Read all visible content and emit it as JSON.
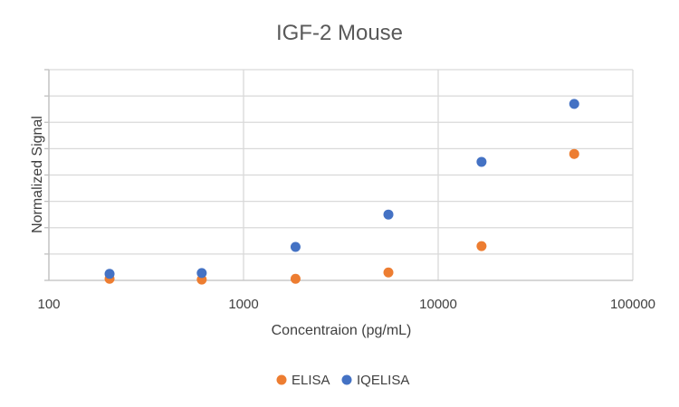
{
  "chart_data": {
    "type": "scatter",
    "title": "IGF-2 Mouse",
    "xlabel": "Concentraion (pg/mL)",
    "ylabel": "Normalized Signal",
    "xscale": "log",
    "xlim": [
      100,
      100000
    ],
    "x_ticks": [
      "100",
      "1000",
      "10000",
      "100000"
    ],
    "y_tick_labels_shown": false,
    "ylim": [
      0,
      8
    ],
    "grid": true,
    "legend": "bottom",
    "series": [
      {
        "name": "ELISA",
        "color": "#ED7D31",
        "x": [
          205,
          610,
          1850,
          5550,
          16700,
          50000
        ],
        "y": [
          0.06,
          0.03,
          0.06,
          0.3,
          1.3,
          4.8
        ]
      },
      {
        "name": "IQELISA",
        "color": "#4472C4",
        "x": [
          205,
          610,
          1850,
          5550,
          16700,
          50000
        ],
        "y": [
          0.25,
          0.28,
          1.27,
          2.5,
          4.5,
          6.7
        ]
      }
    ]
  }
}
